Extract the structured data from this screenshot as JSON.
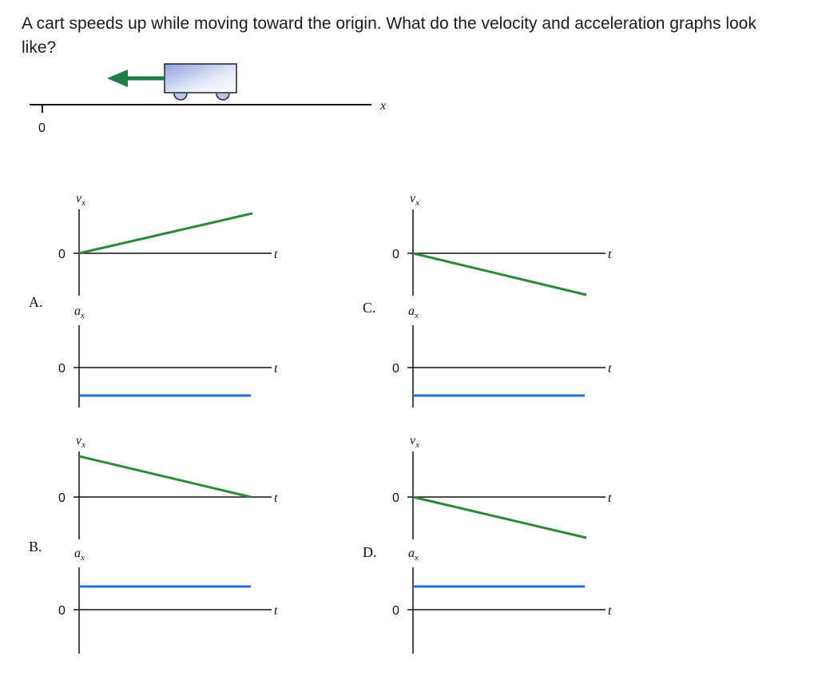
{
  "question": "A cart speeds up while moving toward the origin. What do the velocity and acceleration graphs look like?",
  "track": {
    "origin_label": "0",
    "axis_label": "x"
  },
  "colors": {
    "velocity": "#2a8a3a",
    "acceleration": "#1f6fe0",
    "arrow": "#1e7d45",
    "axis": "#111111"
  },
  "options": [
    {
      "letter": "A.",
      "velocity": "increasing from zero (positive slope)",
      "acceleration": "constant negative"
    },
    {
      "letter": "B.",
      "velocity": "decreasing from positive to zero",
      "acceleration": "constant positive"
    },
    {
      "letter": "C.",
      "velocity": "decreasing from zero (negative slope)",
      "acceleration": "constant negative"
    },
    {
      "letter": "D.",
      "velocity": "decreasing from zero (negative slope)",
      "acceleration": "constant positive"
    }
  ],
  "labels": {
    "vx_main": "v",
    "vx_sub": "x",
    "ax_main": "a",
    "ax_sub": "x",
    "t": "t",
    "zero": "0"
  }
}
